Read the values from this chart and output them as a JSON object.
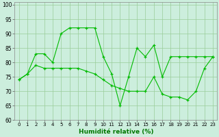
{
  "line1_x": [
    0,
    1,
    2,
    3,
    4,
    5,
    6,
    7,
    8,
    9,
    10,
    11,
    12,
    13,
    14,
    15,
    16,
    17,
    18,
    19,
    20,
    21,
    22,
    23
  ],
  "line1_y": [
    74,
    76,
    83,
    83,
    80,
    90,
    92,
    92,
    92,
    92,
    82,
    76,
    65,
    75,
    85,
    82,
    86,
    75,
    82,
    82,
    82,
    82,
    82,
    82
  ],
  "line2_x": [
    0,
    1,
    2,
    3,
    4,
    5,
    6,
    7,
    8,
    9,
    10,
    11,
    12,
    13,
    14,
    15,
    16,
    17,
    18,
    19,
    20,
    21,
    22,
    23
  ],
  "line2_y": [
    74,
    76,
    79,
    78,
    78,
    78,
    78,
    78,
    77,
    76,
    74,
    72,
    71,
    70,
    70,
    70,
    75,
    69,
    68,
    68,
    67,
    70,
    78,
    82
  ],
  "line_color": "#00bb00",
  "bg_color": "#cceedd",
  "grid_color": "#99cc99",
  "xlabel": "Humidité relative (%)",
  "xlabel_color": "#007700",
  "ylim": [
    60,
    101
  ],
  "xlim": [
    -0.5,
    23.5
  ],
  "yticks": [
    60,
    65,
    70,
    75,
    80,
    85,
    90,
    95,
    100
  ],
  "xticks": [
    0,
    1,
    2,
    3,
    4,
    5,
    6,
    7,
    8,
    9,
    10,
    11,
    12,
    13,
    14,
    15,
    16,
    17,
    18,
    19,
    20,
    21,
    22,
    23
  ],
  "tick_fontsize": 5.0,
  "ytick_fontsize": 5.5,
  "xlabel_fontsize": 6.5,
  "marker": "+",
  "linewidth": 0.8,
  "markersize": 3.5,
  "markeredgewidth": 0.9
}
